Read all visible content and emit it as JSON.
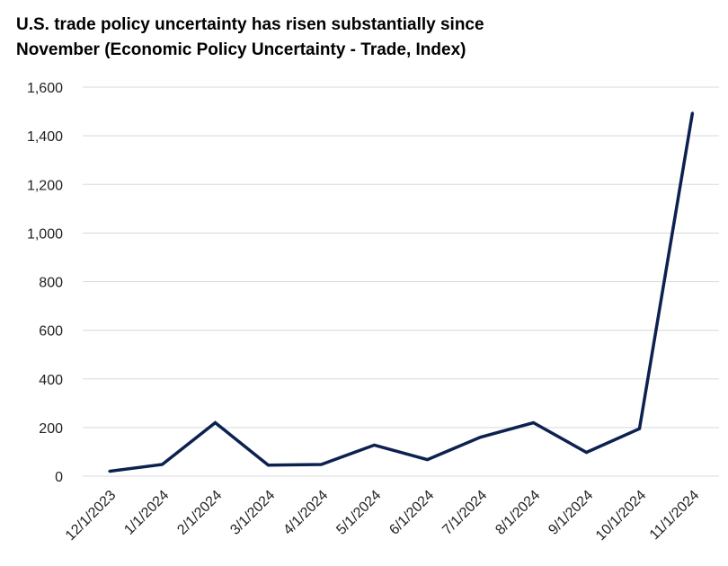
{
  "chart_data": {
    "type": "line",
    "title_lines": [
      "U.S. trade policy uncertainty has risen substantially since",
      "November (Economic Policy Uncertainty - Trade, Index)"
    ],
    "categories": [
      "12/1/2023",
      "1/1/2024",
      "2/1/2024",
      "3/1/2024",
      "4/1/2024",
      "5/1/2024",
      "6/1/2024",
      "7/1/2024",
      "8/1/2024",
      "9/1/2024",
      "10/1/2024",
      "11/1/2024"
    ],
    "series": [
      {
        "values": [
          20,
          48,
          220,
          45,
          48,
          128,
          68,
          160,
          220,
          98,
          195,
          1495
        ]
      }
    ],
    "ylim": [
      0,
      1600
    ],
    "yticks": [
      0,
      200,
      400,
      600,
      800,
      1000,
      1200,
      1400,
      1600
    ],
    "ytick_labels": [
      "0",
      "200",
      "400",
      "600",
      "800",
      "1,000",
      "1,200",
      "1,400",
      "1,600"
    ],
    "grid": true,
    "line_color": "#0d2150"
  }
}
